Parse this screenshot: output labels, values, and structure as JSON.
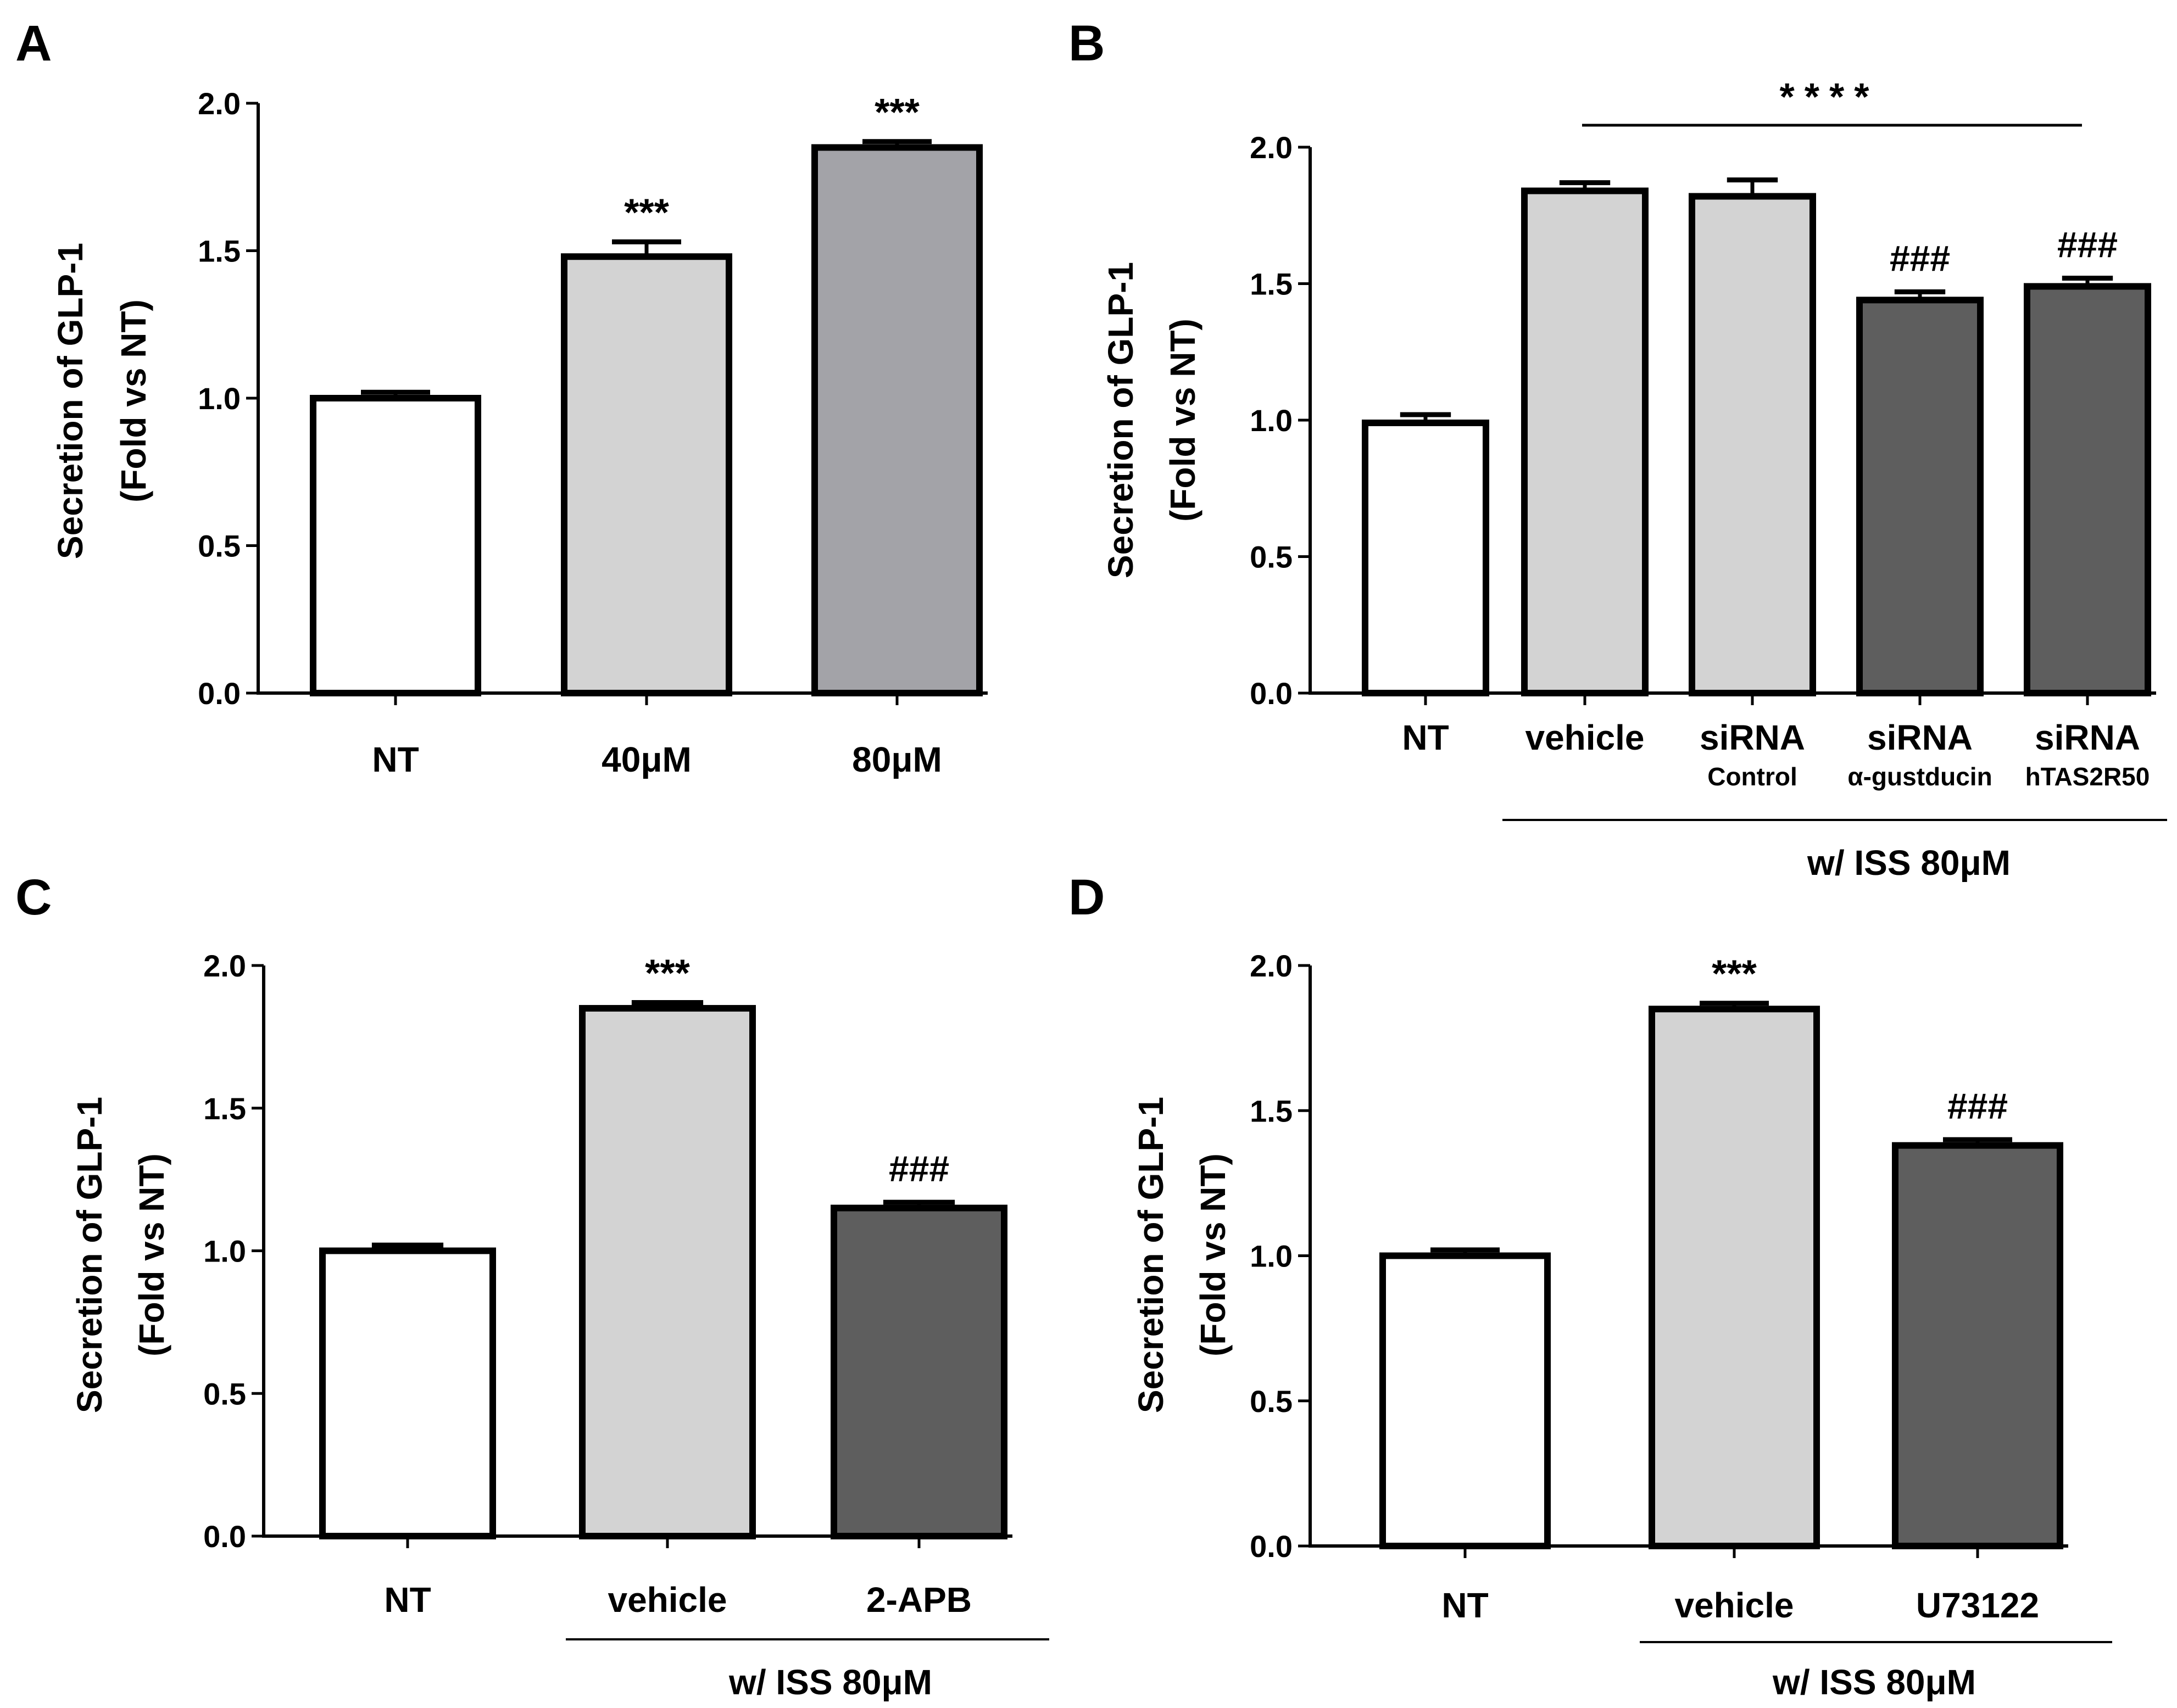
{
  "figure": {
    "description_free": true
  },
  "chart_data": [
    {
      "id": "A",
      "panel_label": "A",
      "type": "bar",
      "ylabel_line1": "Secretion of GLP-1",
      "ylabel_line2": "(Fold vs NT)",
      "ylim": [
        0,
        2.0
      ],
      "yticks": [
        "0.0",
        "0.5",
        "1.0",
        "1.5",
        "2.0"
      ],
      "categories": [
        "NT",
        "40μM",
        "80μM"
      ],
      "sublabels": [
        "",
        "",
        ""
      ],
      "values": [
        1.0,
        1.48,
        1.85
      ],
      "errors": [
        0.02,
        0.05,
        0.02
      ],
      "fills": [
        "#ffffff",
        "#d3d3d3",
        "#a3a3a8"
      ],
      "annotations": [
        "",
        "***",
        "***"
      ],
      "group_label": "",
      "bracket_text": ""
    },
    {
      "id": "B",
      "panel_label": "B",
      "type": "bar",
      "ylabel_line1": "Secretion of GLP-1",
      "ylabel_line2": "(Fold vs NT)",
      "ylim": [
        0,
        2.0
      ],
      "yticks": [
        "0.0",
        "0.5",
        "1.0",
        "1.5",
        "2.0"
      ],
      "categories": [
        "NT",
        "vehicle",
        "siRNA",
        "siRNA",
        "siRNA"
      ],
      "sublabels": [
        "",
        "",
        "Control",
        "α-gustducin",
        "hTAS2R50"
      ],
      "values": [
        0.99,
        1.84,
        1.82,
        1.44,
        1.49
      ],
      "errors": [
        0.03,
        0.03,
        0.06,
        0.03,
        0.03
      ],
      "fills": [
        "#ffffff",
        "#d3d3d3",
        "#d3d3d3",
        "#5e5e5e",
        "#5e5e5e"
      ],
      "annotations": [
        "",
        "",
        "",
        "###",
        "###"
      ],
      "group_label": "w/ ISS 80μM",
      "bracket_text": "****"
    },
    {
      "id": "C",
      "panel_label": "C",
      "type": "bar",
      "ylabel_line1": "Secretion of GLP-1",
      "ylabel_line2": "(Fold vs NT)",
      "ylim": [
        0,
        2.0
      ],
      "yticks": [
        "0.0",
        "0.5",
        "1.0",
        "1.5",
        "2.0"
      ],
      "categories": [
        "NT",
        "vehicle",
        "2-APB"
      ],
      "sublabels": [
        "",
        "",
        ""
      ],
      "values": [
        1.0,
        1.85,
        1.15
      ],
      "errors": [
        0.02,
        0.02,
        0.02
      ],
      "fills": [
        "#ffffff",
        "#d3d3d3",
        "#5e5e5e"
      ],
      "annotations": [
        "",
        "***",
        "###"
      ],
      "group_label": "w/ ISS 80μM",
      "bracket_text": ""
    },
    {
      "id": "D",
      "panel_label": "D",
      "type": "bar",
      "ylabel_line1": "Secretion of GLP-1",
      "ylabel_line2": "(Fold vs NT)",
      "ylim": [
        0,
        2.0
      ],
      "yticks": [
        "0.0",
        "0.5",
        "1.0",
        "1.5",
        "2.0"
      ],
      "categories": [
        "NT",
        "vehicle",
        "U73122"
      ],
      "sublabels": [
        "",
        "",
        ""
      ],
      "values": [
        1.0,
        1.85,
        1.38
      ],
      "errors": [
        0.02,
        0.02,
        0.02
      ],
      "fills": [
        "#ffffff",
        "#d3d3d3",
        "#5e5e5e"
      ],
      "annotations": [
        "",
        "***",
        "###"
      ],
      "group_label": "w/ ISS 80μM",
      "bracket_text": ""
    }
  ]
}
